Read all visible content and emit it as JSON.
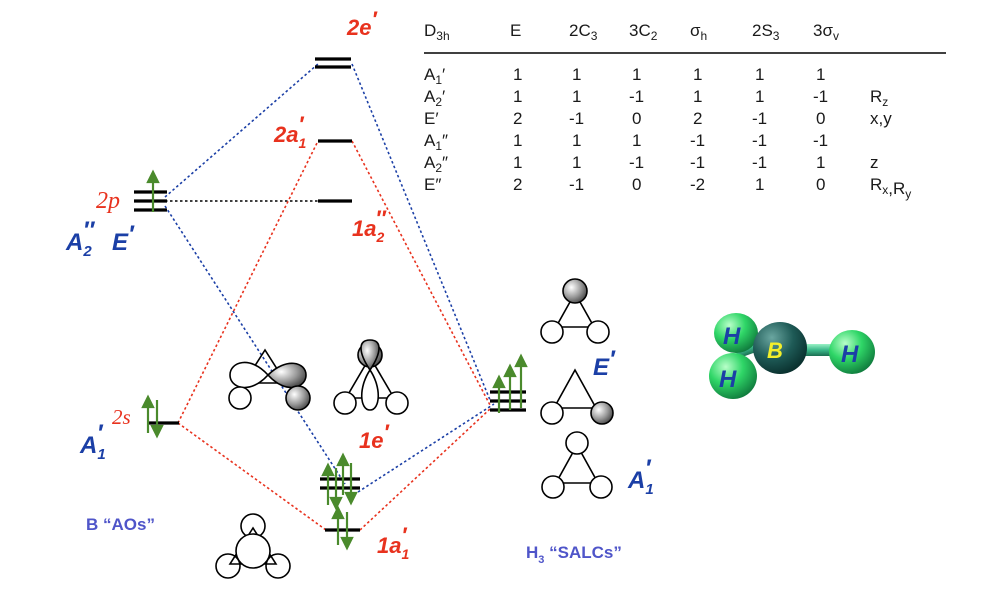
{
  "diagram": {
    "mo_labels": {
      "e2": {
        "main": "2e",
        "prime": "′"
      },
      "a2_1": {
        "main": "2a",
        "sub": "1",
        "prime": "′"
      },
      "a1_1": {
        "main": "1a",
        "sub": "2",
        "prime": "″"
      },
      "e1": {
        "main": "1e",
        "prime": "′"
      },
      "a1_low": {
        "main": "1a",
        "sub": "1",
        "prime": "′"
      }
    },
    "boron": {
      "p_label": "2p",
      "s_label": "2s",
      "sym_a2": {
        "main": "A",
        "sub": "2",
        "prime": "″"
      },
      "sym_e": {
        "main": "E",
        "prime": "′"
      },
      "sym_a1": {
        "main": "A",
        "sub": "1",
        "prime": "′"
      },
      "caption": "B “AOs”"
    },
    "hydrogen": {
      "sym_e": {
        "main": "E",
        "prime": "′"
      },
      "sym_a1": {
        "main": "A",
        "sub": "1",
        "prime": "′"
      },
      "caption_main": "H",
      "caption_sub": "3",
      "caption_rest": " “SALCs”"
    },
    "molecule": {
      "h1": "H",
      "h2": "H",
      "h3": "H",
      "b": "B"
    },
    "colors": {
      "red": "#e8321e",
      "blue": "#1b3fa6",
      "green": "#4a8a2c",
      "caption": "#4f55c9"
    }
  },
  "character_table": {
    "group": "D3h",
    "headers": [
      {
        "text": "E"
      },
      {
        "text": "2C",
        "sub": "3"
      },
      {
        "text": "3C",
        "sub": "2"
      },
      {
        "text": "σ",
        "sub": "h"
      },
      {
        "text": "2S",
        "sub": "3"
      },
      {
        "text": "3σ",
        "sub": "v"
      }
    ],
    "rows": [
      {
        "irrep": "A1′",
        "values": [
          "1",
          "1",
          "1",
          "1",
          "1",
          "1"
        ],
        "basis": ""
      },
      {
        "irrep": "A2′",
        "values": [
          "1",
          "1",
          "-1",
          "1",
          "1",
          "-1"
        ],
        "basis": "Rz"
      },
      {
        "irrep": "E′",
        "values": [
          "2",
          "-1",
          "0",
          "2",
          "-1",
          "0"
        ],
        "basis": "x,y"
      },
      {
        "irrep": "A1″",
        "values": [
          "1",
          "1",
          "1",
          "-1",
          "-1",
          "-1"
        ],
        "basis": ""
      },
      {
        "irrep": "A2″",
        "values": [
          "1",
          "1",
          "-1",
          "-1",
          "-1",
          "1"
        ],
        "basis": "z"
      },
      {
        "irrep": "E″",
        "values": [
          "2",
          "-1",
          "0",
          "-2",
          "1",
          "0"
        ],
        "basis": "Rx,Ry"
      }
    ]
  }
}
